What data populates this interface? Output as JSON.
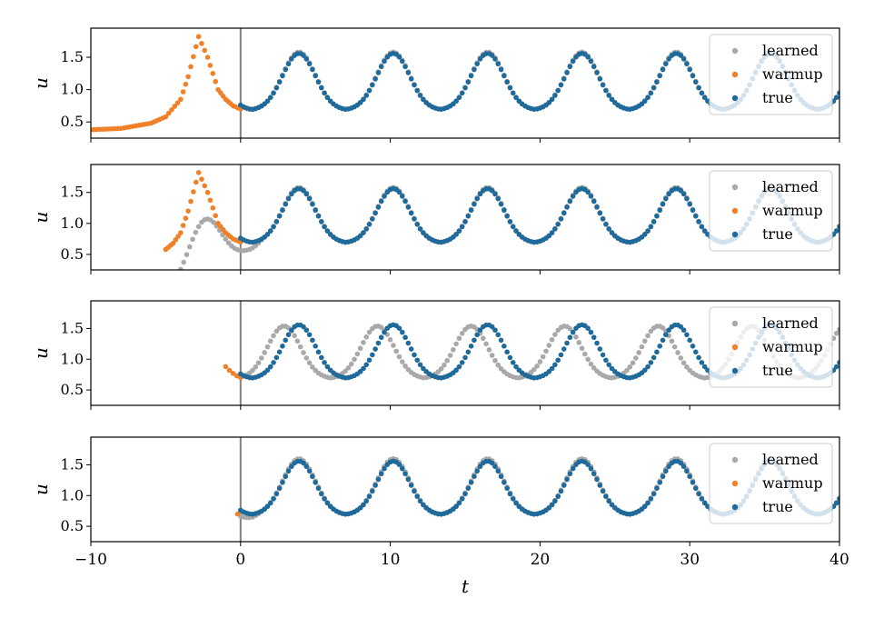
{
  "figure": {
    "xlabel": "t",
    "colors": {
      "learned": "#a9a9a9",
      "warmup": "#ef8129",
      "true": "#1f6a9b"
    }
  },
  "chart_data": [
    {
      "type": "scatter",
      "ylabel": "u",
      "xlim": [
        -10,
        40
      ],
      "ylim": [
        0.25,
        1.95
      ],
      "xticks": [
        -10,
        0,
        10,
        20,
        30,
        40
      ],
      "yticks": [
        0.5,
        1.0,
        1.5
      ],
      "ytick_labels": [
        "0.5",
        "1.0",
        "1.5"
      ],
      "legend": {
        "placement": "top-right",
        "entries": [
          "learned",
          "warmup",
          "true"
        ]
      },
      "vline_x": 0,
      "series": [
        {
          "name": "learned",
          "color": "#a9a9a9",
          "t_start": 0,
          "t_end": 40,
          "base_start": 0.67,
          "period": 6.3,
          "peak_t": 3.9,
          "amplitude": 0.9
        },
        {
          "name": "warmup",
          "color": "#ef8129",
          "t_start": -10,
          "t_end": 0,
          "points": [
            [
              -10,
              0.38
            ],
            [
              -8,
              0.4
            ],
            [
              -6,
              0.48
            ],
            [
              -5,
              0.58
            ],
            [
              -4,
              0.85
            ],
            [
              -3.5,
              1.2
            ],
            [
              -2.8,
              1.82
            ],
            [
              -2.2,
              1.5
            ],
            [
              -1.5,
              1.0
            ],
            [
              -1,
              0.85
            ],
            [
              -0.5,
              0.75
            ],
            [
              0,
              0.7
            ]
          ]
        },
        {
          "name": "true",
          "color": "#1f6a9b",
          "t_start": 0,
          "t_end": 40,
          "period": 6.3,
          "peak_t": 3.9,
          "amplitude": 0.88
        }
      ]
    },
    {
      "type": "scatter",
      "ylabel": "u",
      "xlim": [
        -10,
        40
      ],
      "ylim": [
        0.25,
        1.95
      ],
      "xticks": [
        -10,
        0,
        10,
        20,
        30,
        40
      ],
      "yticks": [
        0.5,
        1.0,
        1.5
      ],
      "ytick_labels": [
        "0.5",
        "1.0",
        "1.5"
      ],
      "legend": {
        "placement": "top-right",
        "entries": [
          "learned",
          "warmup",
          "true"
        ]
      },
      "vline_x": 0,
      "series": [
        {
          "name": "learned",
          "color": "#a9a9a9",
          "t_start": -5,
          "t_end": 40,
          "base_start": 0.48,
          "period": 6.3,
          "peak_t": 3.9,
          "amplitude": 0.9
        },
        {
          "name": "warmup",
          "color": "#ef8129",
          "t_start": -5,
          "t_end": 0,
          "points": [
            [
              -5,
              0.58
            ],
            [
              -4.5,
              0.68
            ],
            [
              -4,
              0.85
            ],
            [
              -3.5,
              1.2
            ],
            [
              -2.8,
              1.82
            ],
            [
              -2.2,
              1.5
            ],
            [
              -1.5,
              1.0
            ],
            [
              -1,
              0.85
            ],
            [
              -0.5,
              0.75
            ],
            [
              0,
              0.7
            ]
          ]
        },
        {
          "name": "true",
          "color": "#1f6a9b",
          "t_start": 0,
          "t_end": 40,
          "period": 6.3,
          "peak_t": 3.9,
          "amplitude": 0.88
        }
      ]
    },
    {
      "type": "scatter",
      "ylabel": "u",
      "xlim": [
        -10,
        40
      ],
      "ylim": [
        0.25,
        1.95
      ],
      "xticks": [
        -10,
        0,
        10,
        20,
        30,
        40
      ],
      "yticks": [
        0.5,
        1.0,
        1.5
      ],
      "ytick_labels": [
        "0.5",
        "1.0",
        "1.5"
      ],
      "legend": {
        "placement": "top-right",
        "entries": [
          "learned",
          "warmup",
          "true"
        ]
      },
      "vline_x": 0,
      "series": [
        {
          "name": "learned",
          "color": "#a9a9a9",
          "t_start": 0,
          "t_end": 40,
          "period": 6.25,
          "peak_t": 2.9,
          "amplitude": 0.86
        },
        {
          "name": "warmup",
          "color": "#ef8129",
          "t_start": -1,
          "t_end": 0,
          "points": [
            [
              -1,
              0.88
            ],
            [
              -0.75,
              0.82
            ],
            [
              -0.5,
              0.77
            ],
            [
              -0.25,
              0.73
            ],
            [
              0,
              0.7
            ]
          ]
        },
        {
          "name": "true",
          "color": "#1f6a9b",
          "t_start": 0,
          "t_end": 40,
          "period": 6.3,
          "peak_t": 3.9,
          "amplitude": 0.88
        }
      ]
    },
    {
      "type": "scatter",
      "ylabel": "u",
      "xlim": [
        -10,
        40
      ],
      "ylim": [
        0.25,
        1.95
      ],
      "xticks": [
        -10,
        0,
        10,
        20,
        30,
        40
      ],
      "yticks": [
        0.5,
        1.0,
        1.5
      ],
      "ytick_labels": [
        "0.5",
        "1.0",
        "1.5"
      ],
      "legend": {
        "placement": "top-right",
        "entries": [
          "learned",
          "warmup",
          "true"
        ]
      },
      "vline_x": 0,
      "series": [
        {
          "name": "learned",
          "color": "#a9a9a9",
          "t_start": 0,
          "t_end": 40,
          "base_start": 0.58,
          "period": 6.3,
          "peak_t": 3.9,
          "amplitude": 0.92
        },
        {
          "name": "warmup",
          "color": "#ef8129",
          "t_start": 0,
          "t_end": 0,
          "points": [
            [
              -0.2,
              0.7
            ]
          ]
        },
        {
          "name": "true",
          "color": "#1f6a9b",
          "t_start": 0,
          "t_end": 40,
          "period": 6.3,
          "peak_t": 3.9,
          "amplitude": 0.88
        }
      ]
    }
  ]
}
